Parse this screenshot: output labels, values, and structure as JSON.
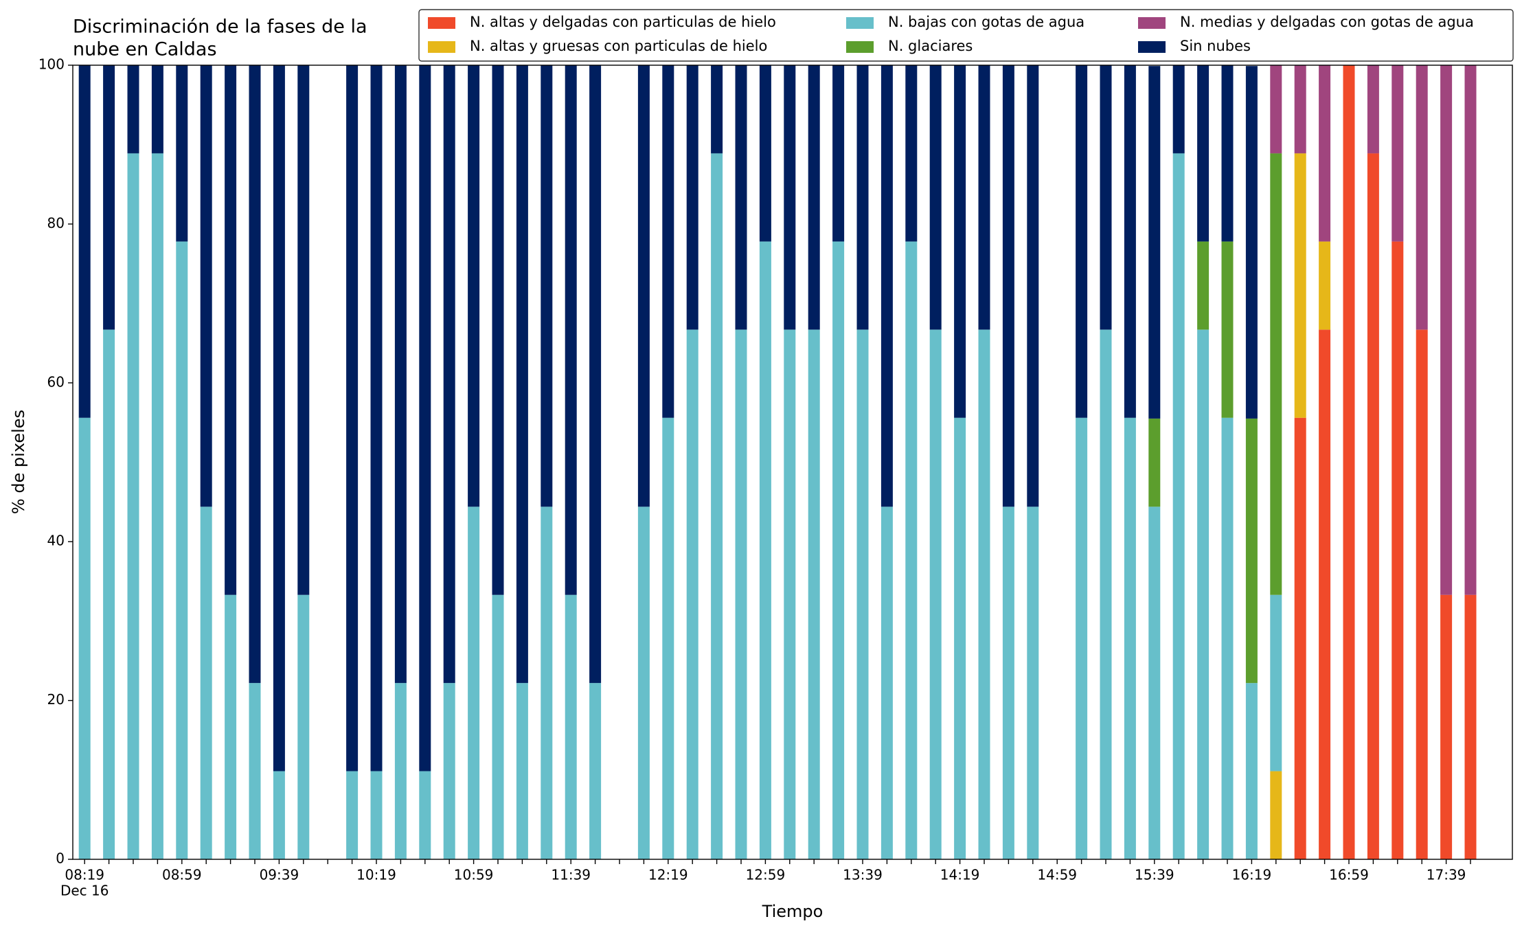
{
  "chart_data": {
    "type": "stacked_bar",
    "title": [
      "Discriminación de la fases de la",
      "nube en Caldas"
    ],
    "x_label": "Tiempo",
    "y_label": "% de pixeles",
    "date_label": "Dec 16",
    "categories": [
      "08:19",
      null,
      null,
      null,
      "08:59",
      null,
      null,
      null,
      "09:39",
      null,
      null,
      null,
      "10:19",
      null,
      null,
      null,
      "10:59",
      null,
      null,
      null,
      "11:39",
      null,
      null,
      null,
      "12:19",
      null,
      null,
      null,
      "12:59",
      null,
      null,
      null,
      "13:39",
      null,
      null,
      null,
      "14:19",
      null,
      null,
      null,
      "14:59",
      null,
      null,
      null,
      "15:39",
      null,
      null,
      null,
      "16:19",
      null,
      null,
      null,
      "16:59",
      null,
      null,
      null,
      "17:39",
      null
    ],
    "ylim": [
      0,
      100
    ],
    "yticks": [
      0,
      20,
      40,
      60,
      80,
      100
    ],
    "legend": "upper right",
    "series": [
      {
        "name": "N. altas y delgadas con particulas de hielo",
        "color": "#f04a2a",
        "values": [
          0,
          0,
          0,
          0,
          0,
          0,
          0,
          0,
          0,
          0,
          null,
          0,
          0,
          0,
          0,
          0,
          0,
          0,
          0,
          0,
          0,
          0,
          null,
          0,
          0,
          0,
          0,
          0,
          0,
          0,
          0,
          0,
          0,
          0,
          0,
          0,
          0,
          0,
          0,
          0,
          null,
          0,
          0,
          0,
          0,
          0,
          0,
          0,
          0,
          0,
          55.6,
          66.7,
          100,
          88.9,
          77.8,
          66.7,
          33.3,
          33.3
        ]
      },
      {
        "name": "N. altas y gruesas con particulas de hielo",
        "color": "#e6b719",
        "values": [
          0,
          0,
          0,
          0,
          0,
          0,
          0,
          0,
          0,
          0,
          null,
          0,
          0,
          0,
          0,
          0,
          0,
          0,
          0,
          0,
          0,
          0,
          null,
          0,
          0,
          0,
          0,
          0,
          0,
          0,
          0,
          0,
          0,
          0,
          0,
          0,
          0,
          0,
          0,
          0,
          null,
          0,
          0,
          0,
          0,
          0,
          0,
          0,
          0,
          11.1,
          33.3,
          11.1,
          0,
          0,
          0,
          0,
          0,
          0
        ]
      },
      {
        "name": "N. bajas con gotas de agua",
        "color": "#67bfca",
        "values": [
          55.6,
          66.7,
          88.9,
          88.9,
          77.8,
          44.4,
          33.3,
          22.2,
          11.1,
          33.3,
          null,
          11.1,
          11.1,
          22.2,
          11.1,
          22.2,
          44.4,
          33.3,
          22.2,
          44.4,
          33.3,
          22.2,
          null,
          44.4,
          55.6,
          66.7,
          88.9,
          66.7,
          77.8,
          66.7,
          66.7,
          77.8,
          66.7,
          44.4,
          77.8,
          66.7,
          55.6,
          66.7,
          44.4,
          44.4,
          null,
          55.6,
          66.7,
          55.6,
          44.4,
          88.9,
          66.7,
          55.6,
          22.2,
          22.2,
          0,
          0,
          0,
          0,
          0,
          0,
          0,
          0
        ]
      },
      {
        "name": "N. glaciares",
        "color": "#5c9e2d",
        "values": [
          0,
          0,
          0,
          0,
          0,
          0,
          0,
          0,
          0,
          0,
          null,
          0,
          0,
          0,
          0,
          0,
          0,
          0,
          0,
          0,
          0,
          0,
          null,
          0,
          0,
          0,
          0,
          0,
          0,
          0,
          0,
          0,
          0,
          0,
          0,
          0,
          0,
          0,
          0,
          0,
          null,
          0,
          0,
          0,
          11.1,
          0,
          11.1,
          22.2,
          33.3,
          55.6,
          0,
          0,
          0,
          0,
          0,
          0,
          0,
          0
        ]
      },
      {
        "name": "N. medias y delgadas con gotas de agua",
        "color": "#a0457e",
        "values": [
          0,
          0,
          0,
          0,
          0,
          0,
          0,
          0,
          0,
          0,
          null,
          0,
          0,
          0,
          0,
          0,
          0,
          0,
          0,
          0,
          0,
          0,
          null,
          0,
          0,
          0,
          0,
          0,
          0,
          0,
          0,
          0,
          0,
          0,
          0,
          0,
          0,
          0,
          0,
          0,
          null,
          0,
          0,
          0,
          0,
          0,
          0,
          0,
          0,
          11.1,
          11.1,
          22.2,
          0,
          11.1,
          22.2,
          33.3,
          66.7,
          66.7
        ]
      },
      {
        "name": "Sin nubes",
        "color": "#001f5f",
        "values": [
          44.4,
          33.3,
          11.1,
          11.1,
          22.2,
          55.6,
          66.7,
          77.8,
          88.9,
          66.7,
          null,
          88.9,
          88.9,
          77.8,
          88.9,
          77.8,
          55.6,
          66.7,
          77.8,
          55.6,
          66.7,
          77.8,
          null,
          55.6,
          44.4,
          33.3,
          11.1,
          33.3,
          22.2,
          33.3,
          33.3,
          22.2,
          33.3,
          55.6,
          22.2,
          33.3,
          44.4,
          33.3,
          55.6,
          55.6,
          null,
          44.4,
          33.3,
          44.4,
          44.4,
          11.1,
          22.2,
          22.2,
          44.4,
          0,
          0,
          0,
          0,
          0,
          0,
          0,
          0,
          0
        ]
      }
    ]
  }
}
